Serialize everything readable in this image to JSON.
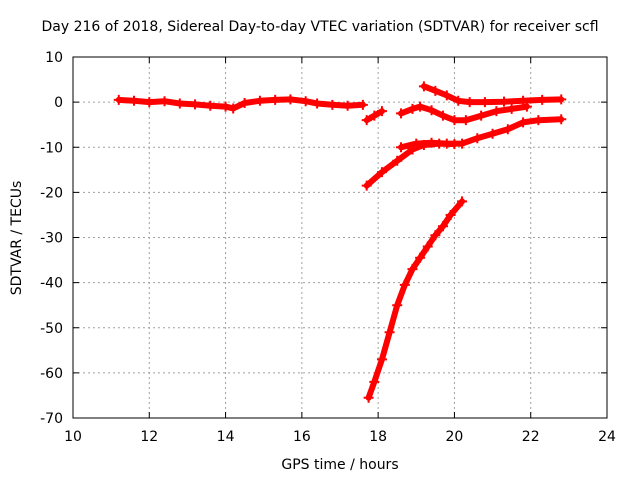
{
  "chart_data": {
    "type": "scatter",
    "title": "Day 216 of 2018, Sidereal Day-to-day VTEC variation (SDTVAR) for receiver scfl",
    "xlabel": "GPS time / hours",
    "ylabel": "SDTVAR / TECUs",
    "xlim": [
      10,
      24
    ],
    "ylim": [
      -70,
      10
    ],
    "xticks": [
      "10",
      "12",
      "14",
      "16",
      "18",
      "20",
      "22",
      "24"
    ],
    "yticks": [
      "10",
      "0",
      "-10",
      "-20",
      "-30",
      "-40",
      "-50",
      "-60",
      "-70"
    ],
    "grid": true,
    "marker_color": "#ff0000",
    "series": [
      {
        "x": [
          11.2,
          11.6,
          12.0,
          12.4,
          12.8,
          13.2,
          13.6,
          14.0,
          14.2,
          14.5,
          14.9,
          15.3,
          15.7,
          16.1,
          16.4,
          16.8,
          17.2,
          17.6
        ],
        "y": [
          0.5,
          0.3,
          0.0,
          0.2,
          -0.3,
          -0.5,
          -0.8,
          -1.0,
          -1.4,
          -0.2,
          0.3,
          0.5,
          0.6,
          0.2,
          -0.3,
          -0.6,
          -0.8,
          -0.6
        ]
      },
      {
        "x": [
          17.7,
          17.9,
          18.1
        ],
        "y": [
          -4.0,
          -3.0,
          -2.0
        ]
      },
      {
        "x": [
          18.6,
          18.9,
          19.1,
          19.4,
          19.7,
          20.0,
          20.3,
          20.7,
          21.1,
          21.5,
          21.9
        ],
        "y": [
          -2.5,
          -1.5,
          -1.0,
          -1.8,
          -3.0,
          -4.0,
          -4.0,
          -3.0,
          -2.0,
          -1.5,
          -1.0
        ]
      },
      {
        "x": [
          19.2,
          19.5,
          19.8,
          20.1,
          20.4,
          20.8,
          21.3,
          21.8,
          22.3,
          22.8
        ],
        "y": [
          3.5,
          2.5,
          1.5,
          0.3,
          0.0,
          0.0,
          0.1,
          0.3,
          0.5,
          0.6
        ]
      },
      {
        "x": [
          18.6,
          19.0,
          19.4,
          19.8,
          20.2,
          20.6,
          21.0,
          21.4,
          21.8,
          22.2,
          22.8
        ],
        "y": [
          -10.0,
          -9.2,
          -9.0,
          -9.2,
          -9.2,
          -8.0,
          -7.0,
          -6.0,
          -4.5,
          -4.0,
          -3.8
        ]
      },
      {
        "x": [
          17.7,
          18.1,
          18.5,
          18.9,
          19.2,
          19.6,
          20.0
        ],
        "y": [
          -18.5,
          -15.5,
          -13.0,
          -10.5,
          -9.5,
          -9.2,
          -9.3
        ]
      },
      {
        "x": [
          17.75,
          17.9,
          18.1,
          18.3,
          18.5,
          18.7,
          18.9,
          19.1,
          19.3,
          19.5,
          19.7,
          19.9,
          20.2
        ],
        "y": [
          -65.5,
          -62.0,
          -57.0,
          -51.0,
          -45.0,
          -40.5,
          -37.0,
          -34.5,
          -32.0,
          -29.5,
          -27.5,
          -25.0,
          -22.0
        ]
      }
    ]
  }
}
